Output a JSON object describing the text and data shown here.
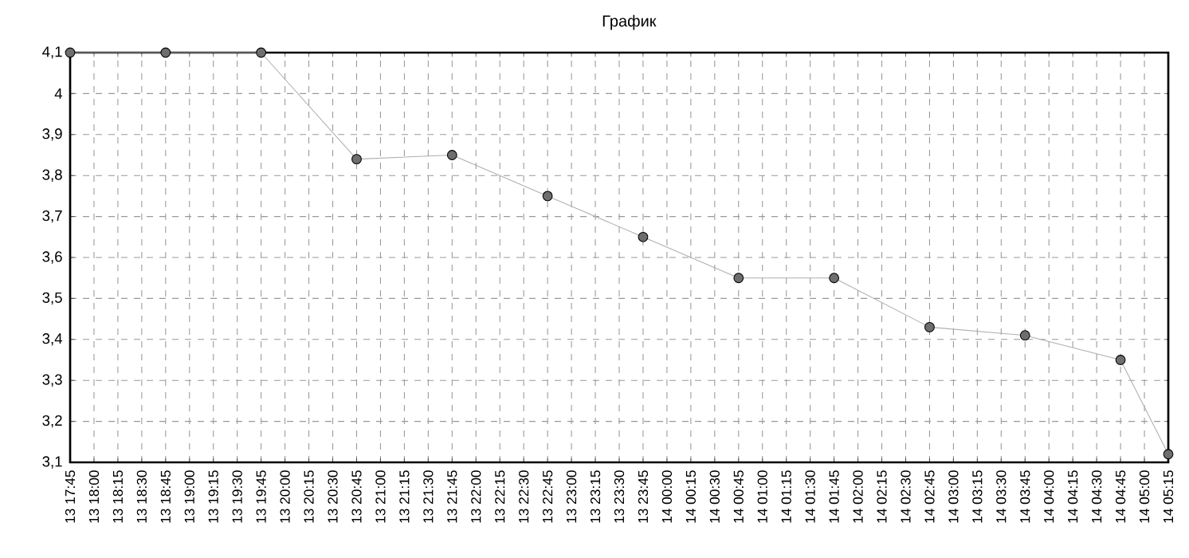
{
  "chart_data": {
    "type": "line",
    "title": "График",
    "categories": [
      "13 17:45",
      "13 18:00",
      "13 18:15",
      "13 18:30",
      "13 18:45",
      "13 19:00",
      "13 19:15",
      "13 19:30",
      "13 19:45",
      "13 20:00",
      "13 20:15",
      "13 20:30",
      "13 20:45",
      "13 21:00",
      "13 21:15",
      "13 21:30",
      "13 21:45",
      "13 22:00",
      "13 22:15",
      "13 22:30",
      "13 22:45",
      "13 23:00",
      "13 23:15",
      "13 23:30",
      "13 23:45",
      "14 00:00",
      "14 00:15",
      "14 00:30",
      "14 00:45",
      "14 01:00",
      "14 01:15",
      "14 01:30",
      "14 01:45",
      "14 02:00",
      "14 02:15",
      "14 02:30",
      "14 02:45",
      "14 03:00",
      "14 03:15",
      "14 03:30",
      "14 03:45",
      "14 04:00",
      "14 04:15",
      "14 04:30",
      "14 04:45",
      "14 05:00",
      "14 05:15"
    ],
    "series": [
      {
        "color": "#6e6e6e",
        "values": [
          4.1,
          null,
          null,
          null,
          4.1,
          null,
          null,
          null,
          4.1,
          null,
          null,
          null,
          3.84,
          null,
          null,
          null,
          3.85,
          null,
          null,
          null,
          3.75,
          null,
          null,
          null,
          3.65,
          null,
          null,
          null,
          3.55,
          null,
          null,
          null,
          3.55,
          null,
          null,
          null,
          3.43,
          null,
          null,
          null,
          3.41,
          null,
          null,
          null,
          3.35,
          null,
          3.12
        ]
      }
    ],
    "ylim": [
      3.1,
      4.1
    ],
    "yticks": [
      {
        "value": 3.1,
        "label": "3,1"
      },
      {
        "value": 3.2,
        "label": "3,2"
      },
      {
        "value": 3.3,
        "label": "3,3"
      },
      {
        "value": 3.4,
        "label": "3,4"
      },
      {
        "value": 3.5,
        "label": "3,5"
      },
      {
        "value": 3.6,
        "label": "3,6"
      },
      {
        "value": 3.7,
        "label": "3,7"
      },
      {
        "value": 3.8,
        "label": "3,8"
      },
      {
        "value": 3.9,
        "label": "3,9"
      },
      {
        "value": 4.0,
        "label": "4"
      },
      {
        "value": 4.1,
        "label": "4,1"
      }
    ],
    "grid": true,
    "marker": "circle",
    "line_style": "solid"
  }
}
